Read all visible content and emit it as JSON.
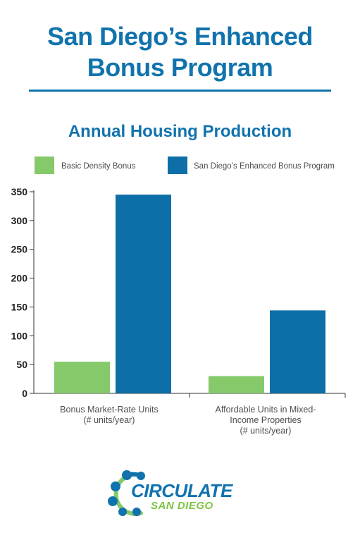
{
  "header": {
    "title_line1": "San Diego’s Enhanced",
    "title_line2": "Bonus Program"
  },
  "colors": {
    "title": "#1173ad",
    "basic": "#85c96b",
    "enhanced": "#0e6ea8",
    "axis": "#333333"
  },
  "chart_data": {
    "type": "bar",
    "title": "Annual Housing Production",
    "categories": [
      [
        "Bonus Market-Rate Units",
        "(# units/year)"
      ],
      [
        "Affordable Units in Mixed-",
        "Income Properties",
        "(# units/year)"
      ]
    ],
    "series": [
      {
        "name": "Basic Density Bonus",
        "values": [
          55,
          30
        ],
        "color": "#85c96b"
      },
      {
        "name": "San Diego’s Enhanced Bonus Program",
        "values": [
          345,
          144
        ],
        "color": "#0e6ea8"
      }
    ],
    "ylim": [
      0,
      350
    ],
    "yticks": [
      0,
      50,
      100,
      150,
      200,
      250,
      300,
      350
    ],
    "grid": false,
    "legend": "top"
  },
  "logo": {
    "name": "CIRCULATE",
    "sub": "SAN DIEGO"
  }
}
